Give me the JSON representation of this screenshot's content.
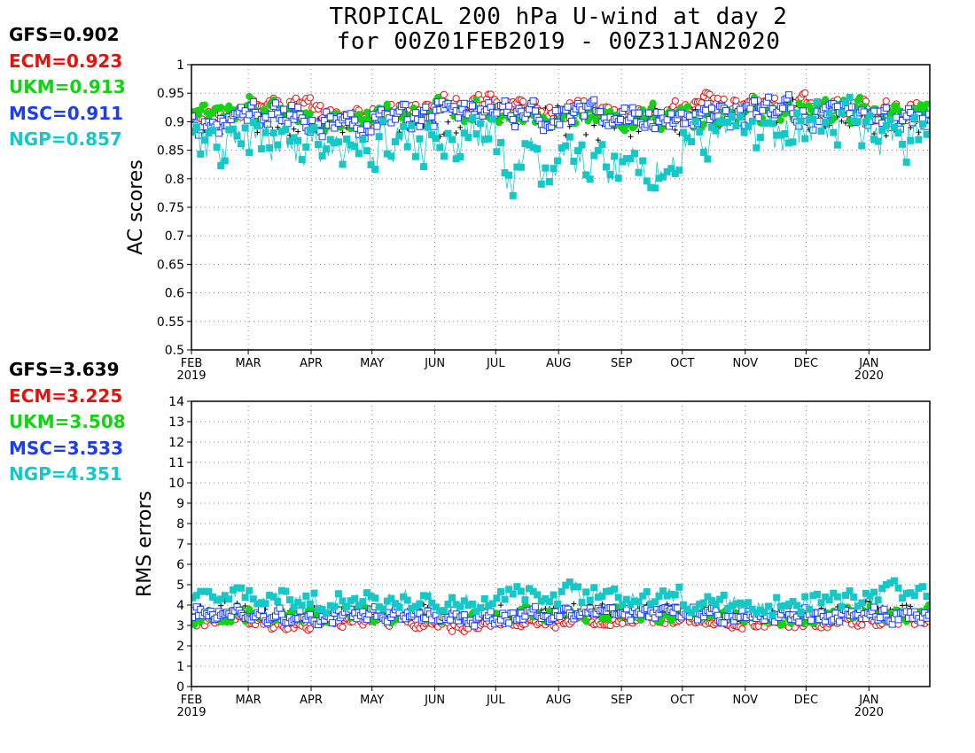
{
  "title_line1": "TROPICAL 200 hPa U-wind at day 2",
  "title_line2": "for 00Z01FEB2019 - 00Z31JAN2020",
  "colors": {
    "GFS": "#000000",
    "ECM": "#e8120c",
    "UKM": "#12d412",
    "MSC": "#1c3cf0",
    "NGP": "#14c8c8"
  },
  "month_labels": [
    "FEB",
    "MAR",
    "APR",
    "MAY",
    "JUN",
    "JUL",
    "AUG",
    "SEP",
    "OCT",
    "NOV",
    "DEC",
    "JAN"
  ],
  "year_labels": [
    "2019",
    "2020"
  ],
  "chart_data": [
    {
      "type": "scatter",
      "name": "ac-scores",
      "ylabel": "AC scores",
      "ylim": [
        0.5,
        1.0
      ],
      "yticks": [
        "0.5",
        "0.55",
        "0.6",
        "0.65",
        "0.7",
        "0.75",
        "0.8",
        "0.85",
        "0.9",
        "0.95",
        "1"
      ],
      "xlim": [
        "2019-02-01",
        "2020-01-31"
      ],
      "grid": true,
      "stats": [
        {
          "model": "GFS",
          "text": "GFS=0.902"
        },
        {
          "model": "ECM",
          "text": "ECM=0.923"
        },
        {
          "model": "UKM",
          "text": "UKM=0.913"
        },
        {
          "model": "MSC",
          "text": "MSC=0.911"
        },
        {
          "model": "NGP",
          "text": "NGP=0.857"
        }
      ],
      "monthly": {
        "GFS": [
          0.89,
          0.9,
          0.89,
          0.9,
          0.91,
          0.9,
          0.9,
          0.9,
          0.91,
          0.91,
          0.91,
          0.9
        ],
        "ECM": [
          0.91,
          0.93,
          0.91,
          0.92,
          0.93,
          0.92,
          0.92,
          0.92,
          0.93,
          0.93,
          0.93,
          0.92
        ],
        "UKM": [
          0.91,
          0.92,
          0.9,
          0.91,
          0.92,
          0.91,
          0.91,
          0.91,
          0.91,
          0.92,
          0.92,
          0.91
        ],
        "MSC": [
          0.9,
          0.91,
          0.9,
          0.91,
          0.92,
          0.91,
          0.91,
          0.91,
          0.91,
          0.92,
          0.91,
          0.91
        ],
        "NGP": [
          0.86,
          0.86,
          0.85,
          0.86,
          0.87,
          0.82,
          0.83,
          0.82,
          0.88,
          0.88,
          0.89,
          0.88
        ]
      },
      "series": [
        {
          "name": "GFS",
          "marker": "plus"
        },
        {
          "name": "ECM",
          "marker": "open-circle"
        },
        {
          "name": "UKM",
          "marker": "filled-circle"
        },
        {
          "name": "MSC",
          "marker": "open-square"
        },
        {
          "name": "NGP",
          "marker": "filled-square"
        }
      ]
    },
    {
      "type": "scatter",
      "name": "rms-errors",
      "ylabel": "RMS errors",
      "ylim": [
        0,
        14
      ],
      "yticks": [
        "0",
        "1",
        "2",
        "3",
        "4",
        "5",
        "6",
        "7",
        "8",
        "9",
        "10",
        "11",
        "12",
        "13",
        "14"
      ],
      "xlim": [
        "2019-02-01",
        "2020-01-31"
      ],
      "grid": true,
      "stats": [
        {
          "model": "GFS",
          "text": "GFS=3.639"
        },
        {
          "model": "ECM",
          "text": "ECM=3.225"
        },
        {
          "model": "UKM",
          "text": "UKM=3.508"
        },
        {
          "model": "MSC",
          "text": "MSC=3.533"
        },
        {
          "model": "NGP",
          "text": "NGP=4.351"
        }
      ],
      "monthly": {
        "GFS": [
          3.7,
          3.5,
          3.6,
          3.6,
          3.4,
          3.6,
          3.7,
          3.7,
          3.6,
          3.5,
          3.6,
          3.7
        ],
        "ECM": [
          3.3,
          3.1,
          3.2,
          3.2,
          3.0,
          3.2,
          3.3,
          3.3,
          3.2,
          3.1,
          3.2,
          3.3
        ],
        "UKM": [
          3.4,
          3.5,
          3.5,
          3.5,
          3.4,
          3.5,
          3.6,
          3.6,
          3.5,
          3.4,
          3.5,
          3.6
        ],
        "MSC": [
          3.6,
          3.5,
          3.5,
          3.5,
          3.4,
          3.5,
          3.6,
          3.6,
          3.5,
          3.5,
          3.5,
          3.5
        ],
        "NGP": [
          4.6,
          4.3,
          4.2,
          4.3,
          4.2,
          4.5,
          4.6,
          4.5,
          4.1,
          4.0,
          4.2,
          4.6
        ]
      },
      "series": [
        {
          "name": "GFS",
          "marker": "plus"
        },
        {
          "name": "ECM",
          "marker": "open-circle"
        },
        {
          "name": "UKM",
          "marker": "filled-circle"
        },
        {
          "name": "MSC",
          "marker": "open-square"
        },
        {
          "name": "NGP",
          "marker": "filled-square"
        }
      ]
    }
  ]
}
